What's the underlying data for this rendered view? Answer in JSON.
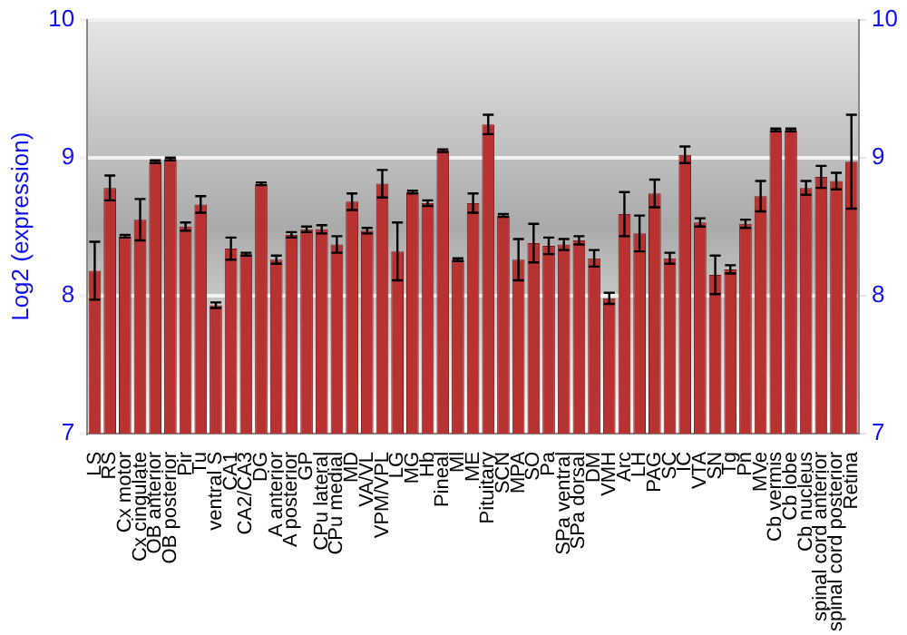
{
  "chart_data": {
    "type": "bar",
    "ylabel": "Log2 (expression)",
    "categories": [
      "LS",
      "RS",
      "Cx motor",
      "Cx cingulate",
      "OB anterior",
      "OB posterior",
      "Pir",
      "Tu",
      "ventral S",
      "CA1",
      "CA2/CA3",
      "DG",
      "A anterior",
      "A posterior",
      "GP",
      "CPu lateral",
      "CPu medial",
      "MD",
      "VA/VL",
      "VPM/VPL",
      "LG",
      "MG",
      "Hb",
      "Pineal",
      "Ml",
      "ME",
      "Pituitary",
      "SCN",
      "MPA",
      "SO",
      "Pa",
      "SPa ventral",
      "SPa dorsal",
      "DM",
      "VMH",
      "Arc",
      "LH",
      "PAG",
      "SC",
      "IC",
      "VTA",
      "SN",
      "Tg",
      "Pn",
      "MVe",
      "Cb vermis",
      "Cb lobe",
      "Cb nucleus",
      "spinal cord anterior",
      "spinal cord posterior",
      "Retina"
    ],
    "values": [
      8.18,
      8.78,
      8.43,
      8.55,
      8.97,
      8.99,
      8.5,
      8.66,
      7.93,
      8.34,
      8.3,
      8.81,
      8.26,
      8.44,
      8.48,
      8.48,
      8.37,
      8.68,
      8.47,
      8.81,
      8.32,
      8.75,
      8.67,
      9.05,
      8.26,
      8.67,
      9.24,
      8.58,
      8.26,
      8.38,
      8.36,
      8.37,
      8.4,
      8.27,
      7.98,
      8.59,
      8.45,
      8.74,
      8.27,
      9.02,
      8.53,
      8.15,
      8.19,
      8.52,
      8.72,
      9.2,
      9.2,
      8.78,
      8.86,
      8.83,
      8.97
    ],
    "errors": [
      0.21,
      0.09,
      0.01,
      0.15,
      0.01,
      0.01,
      0.03,
      0.06,
      0.02,
      0.08,
      0.01,
      0.01,
      0.03,
      0.02,
      0.02,
      0.03,
      0.06,
      0.06,
      0.02,
      0.1,
      0.21,
      0.01,
      0.02,
      0.01,
      0.01,
      0.07,
      0.07,
      0.01,
      0.15,
      0.14,
      0.06,
      0.04,
      0.03,
      0.06,
      0.04,
      0.16,
      0.13,
      0.1,
      0.04,
      0.06,
      0.03,
      0.14,
      0.03,
      0.03,
      0.11,
      0.01,
      0.01,
      0.05,
      0.08,
      0.06,
      0.34
    ],
    "color": "#b83232",
    "ylim": [
      7,
      10
    ],
    "yticks": [
      7,
      8,
      9,
      10
    ],
    "y2lim": [
      7,
      10
    ],
    "y2ticks": [
      7,
      8,
      9,
      10
    ],
    "grid": "y"
  }
}
